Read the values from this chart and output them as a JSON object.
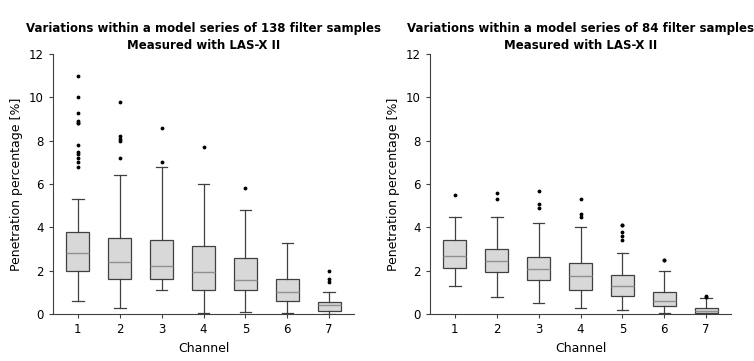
{
  "left": {
    "title": "Variations within a model series of 138 filter samples\nMeasured with LAS-X II",
    "xlabel": "Channel",
    "ylabel": "Penetration percentage [%]",
    "ylim": [
      0,
      12
    ],
    "yticks": [
      0,
      2,
      4,
      6,
      8,
      10,
      12
    ],
    "channels": [
      1,
      2,
      3,
      4,
      5,
      6,
      7
    ],
    "boxes": [
      {
        "q1": 2.0,
        "median": 2.8,
        "q3": 3.8,
        "whislo": 0.6,
        "whishi": 5.3,
        "fliers": [
          11.0,
          10.0,
          9.3,
          8.9,
          8.8,
          8.8,
          7.8,
          7.5,
          7.4,
          7.2,
          7.0,
          6.8
        ]
      },
      {
        "q1": 1.6,
        "median": 2.4,
        "q3": 3.5,
        "whislo": 0.3,
        "whishi": 6.4,
        "fliers": [
          9.8,
          8.2,
          8.1,
          8.0,
          7.2
        ]
      },
      {
        "q1": 1.6,
        "median": 2.2,
        "q3": 3.4,
        "whislo": 1.1,
        "whishi": 6.8,
        "fliers": [
          8.6,
          7.0
        ]
      },
      {
        "q1": 1.1,
        "median": 1.95,
        "q3": 3.15,
        "whislo": 0.05,
        "whishi": 6.0,
        "fliers": [
          7.7
        ]
      },
      {
        "q1": 1.1,
        "median": 1.55,
        "q3": 2.6,
        "whislo": 0.1,
        "whishi": 4.8,
        "fliers": [
          5.8
        ]
      },
      {
        "q1": 0.6,
        "median": 1.0,
        "q3": 1.6,
        "whislo": 0.05,
        "whishi": 3.3,
        "fliers": []
      },
      {
        "q1": 0.15,
        "median": 0.4,
        "q3": 0.55,
        "whislo": 0.0,
        "whishi": 1.0,
        "fliers": [
          1.5,
          1.6,
          2.0
        ]
      }
    ]
  },
  "right": {
    "title": "Variations within a model series of 84 filter samples\nMeasured with LAS-X II",
    "xlabel": "Channel",
    "ylabel": "Penetration percentage [%]",
    "ylim": [
      0,
      12
    ],
    "yticks": [
      0,
      2,
      4,
      6,
      8,
      10,
      12
    ],
    "channels": [
      1,
      2,
      3,
      4,
      5,
      6,
      7
    ],
    "boxes": [
      {
        "q1": 2.15,
        "median": 2.7,
        "q3": 3.4,
        "whislo": 1.3,
        "whishi": 4.5,
        "fliers": [
          5.5
        ]
      },
      {
        "q1": 1.95,
        "median": 2.45,
        "q3": 3.0,
        "whislo": 0.8,
        "whishi": 4.5,
        "fliers": [
          5.6,
          5.3
        ]
      },
      {
        "q1": 1.55,
        "median": 2.1,
        "q3": 2.65,
        "whislo": 0.5,
        "whishi": 4.2,
        "fliers": [
          5.7,
          5.1,
          4.9
        ]
      },
      {
        "q1": 1.1,
        "median": 1.75,
        "q3": 2.35,
        "whislo": 0.3,
        "whishi": 4.0,
        "fliers": [
          5.3,
          4.6,
          4.5
        ]
      },
      {
        "q1": 0.85,
        "median": 1.3,
        "q3": 1.8,
        "whislo": 0.2,
        "whishi": 2.8,
        "fliers": [
          3.4,
          3.6,
          3.8,
          4.1,
          4.1
        ]
      },
      {
        "q1": 0.35,
        "median": 0.6,
        "q3": 1.0,
        "whislo": 0.05,
        "whishi": 2.0,
        "fliers": [
          2.5,
          2.5
        ]
      },
      {
        "q1": 0.05,
        "median": 0.15,
        "q3": 0.3,
        "whislo": 0.0,
        "whishi": 0.75,
        "fliers": [
          0.8,
          0.85
        ]
      }
    ]
  },
  "box_color": "#d8d8d8",
  "box_edge_color": "#404040",
  "median_color": "#909090",
  "whisker_color": "#404040",
  "flier_color": "#000000",
  "title_fontsize": 8.5,
  "label_fontsize": 9,
  "tick_fontsize": 8.5,
  "figsize": [
    7.54,
    3.61
  ],
  "dpi": 100
}
